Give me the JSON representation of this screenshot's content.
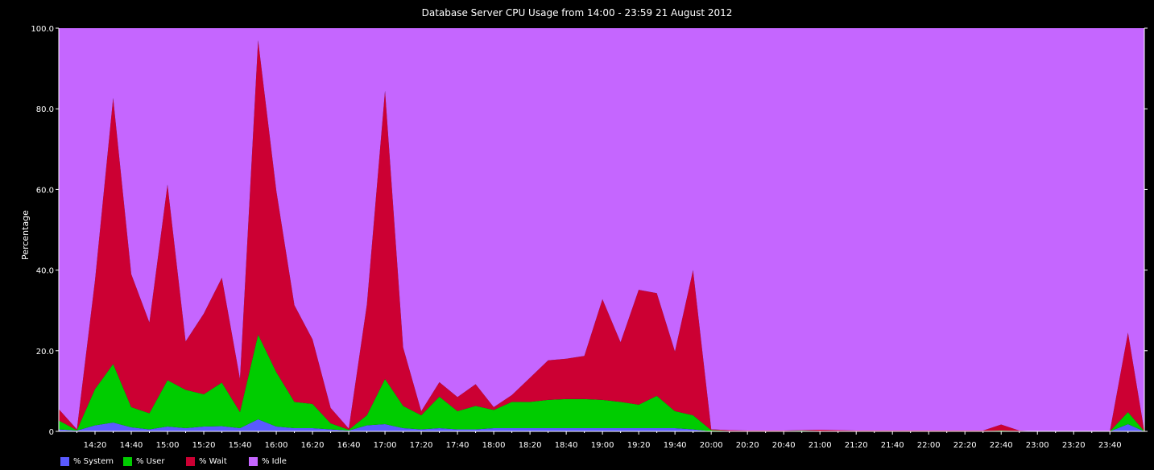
{
  "chart_data": {
    "type": "area",
    "stacked": true,
    "title": "Database Server CPU Usage from 14:00 - 23:59 21 August 2012",
    "ylabel": "Percentage",
    "xlabel": "",
    "ylim": [
      0,
      100
    ],
    "yticks": [
      "0",
      "20.0",
      "40.0",
      "60.0",
      "80.0",
      "100.0"
    ],
    "x_tick_labels": [
      "14:20",
      "14:40",
      "15:00",
      "15:20",
      "15:40",
      "16:00",
      "16:20",
      "16:40",
      "17:00",
      "17:20",
      "17:40",
      "18:00",
      "18:20",
      "18:40",
      "19:00",
      "19:20",
      "19:40",
      "20:00",
      "20:20",
      "20:40",
      "21:00",
      "21:20",
      "21:40",
      "22:00",
      "22:20",
      "22:40",
      "23:00",
      "23:20",
      "23:40"
    ],
    "x_start": "14:00",
    "x_end": "23:59",
    "x_minutes": [
      0,
      10,
      20,
      30,
      40,
      50,
      60,
      70,
      80,
      90,
      100,
      110,
      120,
      130,
      140,
      150,
      160,
      170,
      180,
      190,
      200,
      210,
      220,
      230,
      240,
      250,
      260,
      270,
      280,
      290,
      300,
      310,
      320,
      330,
      340,
      350,
      360,
      370,
      380,
      390,
      400,
      410,
      420,
      430,
      440,
      450,
      460,
      470,
      480,
      490,
      500,
      510,
      520,
      530,
      540,
      550,
      560,
      570,
      580,
      590,
      599
    ],
    "series": [
      {
        "name": "% System",
        "color": "#5a5aff",
        "values": [
          0.5,
          0.2,
          1.5,
          2.2,
          1.0,
          0.5,
          1.2,
          0.8,
          1.2,
          1.3,
          0.8,
          3.0,
          1.2,
          0.8,
          0.8,
          0.5,
          0.2,
          1.5,
          1.8,
          0.8,
          0.5,
          0.8,
          0.5,
          0.5,
          0.8,
          0.8,
          0.8,
          0.8,
          0.8,
          0.8,
          0.8,
          0.8,
          0.8,
          0.8,
          0.8,
          0.5,
          0,
          0,
          0,
          0,
          0,
          0,
          0,
          0,
          0,
          0,
          0,
          0,
          0,
          0,
          0,
          0,
          0,
          0,
          0,
          0,
          0,
          0,
          0,
          1.8,
          0
        ]
      },
      {
        "name": "% User",
        "color": "#00cc00",
        "values": [
          2.2,
          0.1,
          9.0,
          14.5,
          5.0,
          4.0,
          11.5,
          9.5,
          8.0,
          10.8,
          4.0,
          21.0,
          13.5,
          6.5,
          6.0,
          1.5,
          0.2,
          2.5,
          11.2,
          5.5,
          3.5,
          7.8,
          4.5,
          5.8,
          4.5,
          6.5,
          6.5,
          7.0,
          7.2,
          7.2,
          7.0,
          6.5,
          5.8,
          8.0,
          4.2,
          3.5,
          0.3,
          0.1,
          0.1,
          0.1,
          0.1,
          0.2,
          0.1,
          0.1,
          0.1,
          0.1,
          0.1,
          0.1,
          0.1,
          0.1,
          0.1,
          0.1,
          0.2,
          0.1,
          0,
          0,
          0,
          0,
          0,
          3.0,
          0
        ]
      },
      {
        "name": "% Wait",
        "color": "#cc0033",
        "values": [
          2.8,
          0.2,
          27.0,
          66.0,
          33.0,
          22.5,
          48.5,
          12.0,
          20.0,
          26.0,
          8.2,
          73.0,
          45.0,
          24.0,
          16.0,
          3.8,
          0.3,
          27.5,
          71.5,
          14.5,
          1.0,
          3.6,
          3.5,
          5.4,
          0.7,
          1.7,
          6.0,
          9.8,
          10.0,
          10.7,
          25.0,
          14.8,
          28.5,
          25.5,
          14.8,
          36.0,
          0.2,
          0.2,
          0.1,
          0.1,
          0.1,
          0.1,
          0.3,
          0.2,
          0.1,
          0.1,
          0.1,
          0.1,
          0.1,
          0.1,
          0.1,
          0.1,
          1.5,
          0.1,
          0,
          0,
          0,
          0,
          0,
          19.7,
          0
        ]
      },
      {
        "name": "% Idle",
        "color": "#c566ff",
        "values": [
          94.5,
          99.5,
          62.5,
          17.3,
          61.0,
          73.0,
          38.8,
          77.7,
          70.8,
          61.9,
          87.0,
          3.0,
          40.3,
          68.7,
          77.2,
          94.2,
          99.3,
          68.5,
          15.5,
          79.2,
          95.0,
          87.8,
          91.5,
          88.3,
          94.0,
          91.0,
          86.7,
          82.4,
          82.0,
          81.3,
          67.2,
          77.9,
          64.9,
          65.7,
          80.2,
          60.0,
          99.5,
          99.7,
          99.8,
          99.8,
          99.8,
          99.7,
          99.6,
          99.7,
          99.8,
          99.8,
          99.8,
          99.8,
          99.8,
          99.8,
          99.8,
          99.8,
          98.3,
          99.8,
          100,
          100,
          100,
          100,
          100,
          75.5,
          100
        ]
      }
    ],
    "legend_position": "bottom-left",
    "grid": false
  }
}
